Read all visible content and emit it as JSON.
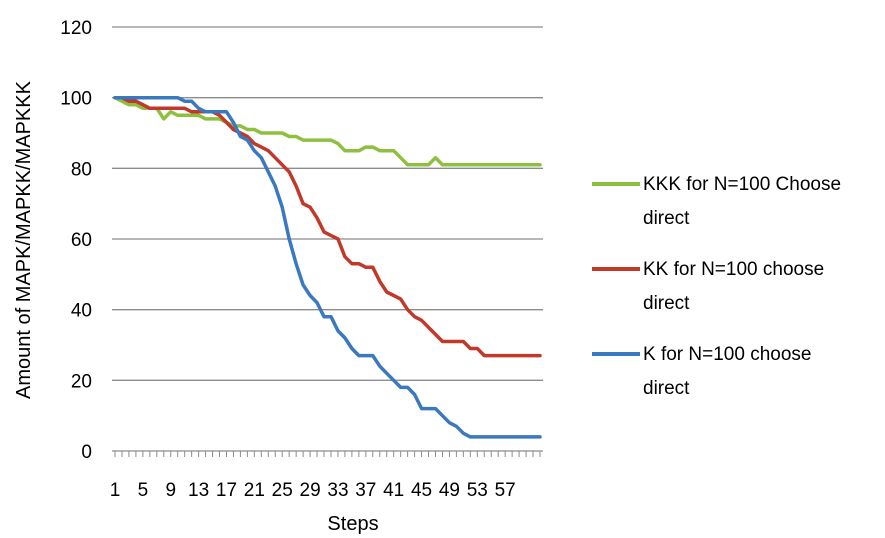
{
  "chart_data": {
    "type": "line",
    "xlabel": "Steps",
    "ylabel": "Amount of MAPK/MAPKK/MAPKKK",
    "ylim": [
      0,
      120
    ],
    "yticks": [
      "0",
      "20",
      "40",
      "60",
      "80",
      "100",
      "120"
    ],
    "xticks": [
      {
        "x": 1,
        "label": "1"
      },
      {
        "x": 5,
        "label": "5"
      },
      {
        "x": 9,
        "label": "9"
      },
      {
        "x": 13,
        "label": "13"
      },
      {
        "x": 17,
        "label": "17"
      },
      {
        "x": 21,
        "label": "21"
      },
      {
        "x": 25,
        "label": "25"
      },
      {
        "x": 29,
        "label": "29"
      },
      {
        "x": 33,
        "label": "33"
      },
      {
        "x": 37,
        "label": "37"
      },
      {
        "x": 41,
        "label": "41"
      },
      {
        "x": 45,
        "label": "45"
      },
      {
        "x": 49,
        "label": "49"
      },
      {
        "x": 53,
        "label": "53"
      },
      {
        "x": 57,
        "label": "57"
      }
    ],
    "xlim": [
      1,
      62
    ],
    "grid": "horizontal",
    "legend_position": "right",
    "series": [
      {
        "name": "KKK for N=100 Choose direct",
        "color": "#8fbf3f",
        "legend_lines": [
          "KKK for N=100 Choose",
          "direct"
        ],
        "values": [
          100,
          99,
          98,
          98,
          97,
          97,
          97,
          94,
          96,
          95,
          95,
          95,
          95,
          94,
          94,
          94,
          93,
          92,
          92,
          91,
          91,
          90,
          90,
          90,
          90,
          89,
          89,
          88,
          88,
          88,
          88,
          88,
          87,
          85,
          85,
          85,
          86,
          86,
          85,
          85,
          85,
          83,
          81,
          81,
          81,
          81,
          83,
          81,
          81,
          81,
          81,
          81,
          81,
          81,
          81,
          81,
          81,
          81,
          81,
          81,
          81,
          81
        ]
      },
      {
        "name": "KK for N=100 choose direct",
        "color": "#c0392b",
        "legend_lines": [
          "KK for N=100 choose",
          "direct"
        ],
        "values": [
          100,
          100,
          99,
          99,
          98,
          97,
          97,
          97,
          97,
          97,
          97,
          96,
          96,
          96,
          96,
          95,
          93,
          91,
          90,
          89,
          87,
          86,
          85,
          83,
          81,
          79,
          75,
          70,
          69,
          66,
          62,
          61,
          60,
          55,
          53,
          53,
          52,
          52,
          48,
          45,
          44,
          43,
          40,
          38,
          37,
          35,
          33,
          31,
          31,
          31,
          31,
          29,
          29,
          27,
          27,
          27,
          27,
          27,
          27,
          27,
          27,
          27
        ]
      },
      {
        "name": "K for N=100 choose direct",
        "color": "#3a78c0",
        "legend_lines": [
          "K for N=100 choose",
          "direct"
        ],
        "values": [
          100,
          100,
          100,
          100,
          100,
          100,
          100,
          100,
          100,
          100,
          99,
          99,
          97,
          96,
          96,
          96,
          96,
          93,
          89,
          88,
          85,
          83,
          79,
          75,
          69,
          60,
          53,
          47,
          44,
          42,
          38,
          38,
          34,
          32,
          29,
          27,
          27,
          27,
          24,
          22,
          20,
          18,
          18,
          16,
          12,
          12,
          12,
          10,
          8,
          7,
          5,
          4,
          4,
          4,
          4,
          4,
          4,
          4,
          4,
          4,
          4,
          4
        ]
      }
    ]
  }
}
